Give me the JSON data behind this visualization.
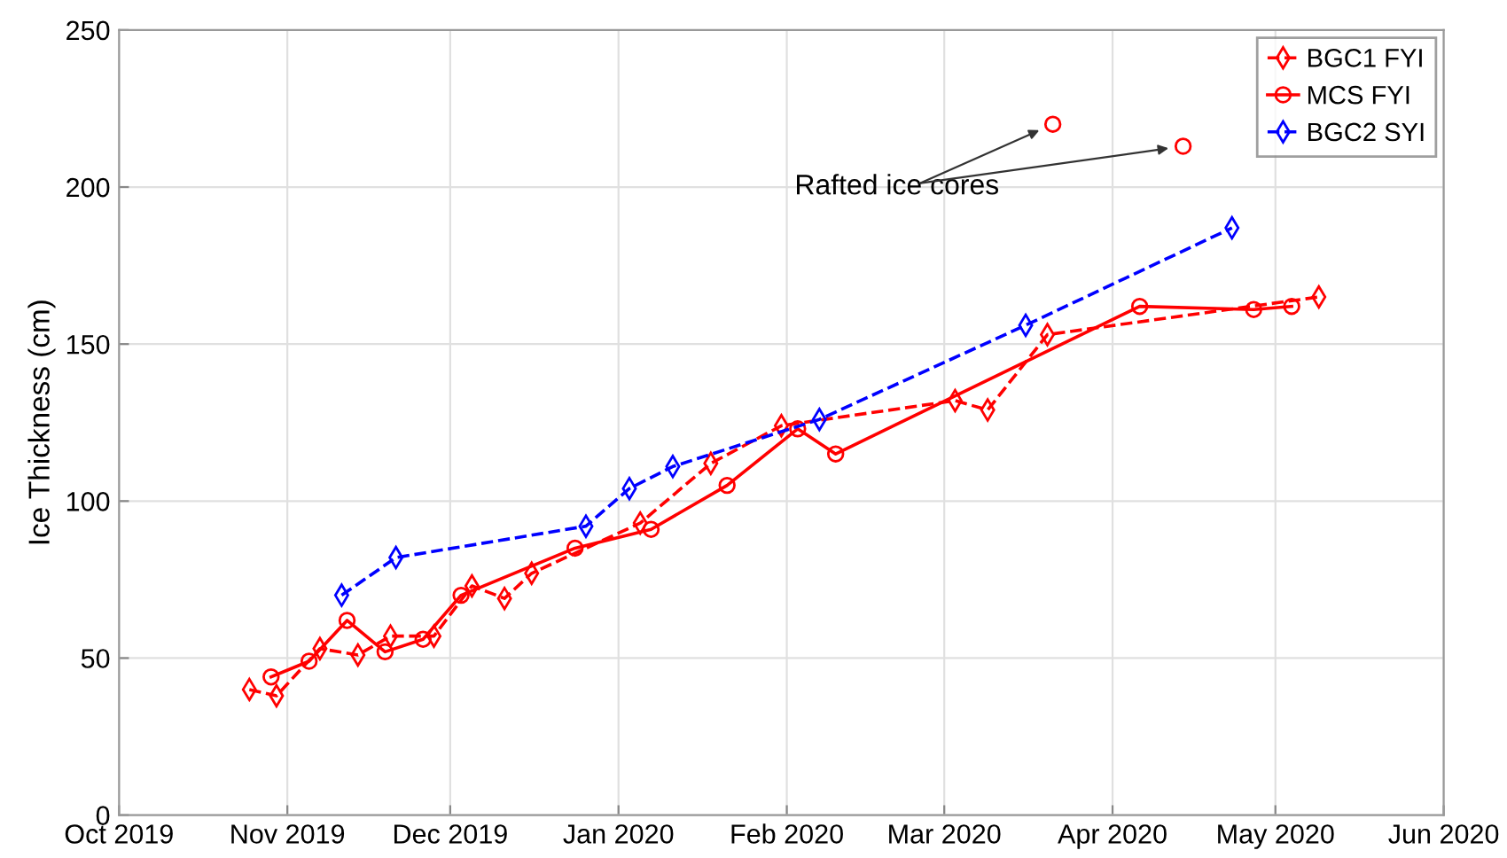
{
  "chart_data": {
    "type": "line",
    "ylabel": "Ice Thickness (cm)",
    "xlim": [
      "2019-10-01",
      "2020-06-01"
    ],
    "xticks": [
      {
        "value": "2019-10-01",
        "label": "Oct 2019"
      },
      {
        "value": "2019-11-01",
        "label": "Nov 2019"
      },
      {
        "value": "2019-12-01",
        "label": "Dec 2019"
      },
      {
        "value": "2020-01-01",
        "label": "Jan 2020"
      },
      {
        "value": "2020-02-01",
        "label": "Feb 2020"
      },
      {
        "value": "2020-03-01",
        "label": "Mar 2020"
      },
      {
        "value": "2020-04-01",
        "label": "Apr 2020"
      },
      {
        "value": "2020-05-01",
        "label": "May 2020"
      },
      {
        "value": "2020-06-01",
        "label": "Jun 2020"
      }
    ],
    "ylim": [
      0,
      250
    ],
    "yticks": [
      0,
      50,
      100,
      150,
      200,
      250
    ],
    "grid": true,
    "legend": "top right",
    "annotations": [
      "Rafted ice cores"
    ],
    "series": [
      {
        "name": "BGC1 FYI",
        "color": "#ff0000",
        "marker": "diamond",
        "line_style": "dashed",
        "x": [
          "2019-10-25",
          "2019-10-30",
          "2019-11-07",
          "2019-11-14",
          "2019-11-20",
          "2019-11-28",
          "2019-12-05",
          "2019-12-11",
          "2019-12-16",
          "2020-01-05",
          "2020-01-18",
          "2020-01-31",
          "2020-03-03",
          "2020-03-09",
          "2020-03-20",
          "2020-05-09"
        ],
        "values": [
          40,
          38,
          53,
          51,
          57,
          57,
          73,
          69,
          77,
          93,
          112,
          124,
          132,
          129,
          153,
          165
        ]
      },
      {
        "name": "MCS FYI",
        "color": "#ff0000",
        "marker": "circle",
        "line_style": "solid",
        "x": [
          "2019-10-29",
          "2019-11-05",
          "2019-11-12",
          "2019-11-19",
          "2019-11-26",
          "2019-12-03",
          "2019-12-24",
          "2020-01-07",
          "2020-01-21",
          "2020-02-03",
          "2020-02-10",
          "2020-04-06",
          "2020-04-27",
          "2020-05-04"
        ],
        "values": [
          44,
          49,
          62,
          52,
          56,
          70,
          85,
          91,
          105,
          123,
          115,
          162,
          161,
          162
        ]
      },
      {
        "name": "BGC2 SYI",
        "color": "#0000ff",
        "marker": "diamond",
        "line_style": "dashed",
        "x": [
          "2019-11-11",
          "2019-11-21",
          "2019-12-26",
          "2020-01-03",
          "2020-01-11",
          "2020-02-07",
          "2020-03-16",
          "2020-04-23"
        ],
        "values": [
          70,
          82,
          92,
          104,
          111,
          126,
          156,
          187
        ]
      },
      {
        "type": "scatter",
        "color": "#ff0000",
        "marker": "circle",
        "x": [
          "2020-03-21",
          "2020-04-14"
        ],
        "values": [
          220,
          213
        ]
      }
    ]
  }
}
